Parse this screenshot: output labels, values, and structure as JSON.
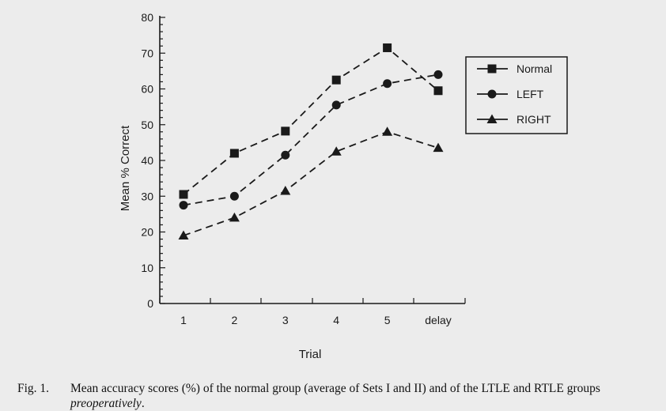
{
  "chart_data": {
    "type": "line",
    "categories": [
      "1",
      "2",
      "3",
      "4",
      "5",
      "delay"
    ],
    "series": [
      {
        "name": "Normal",
        "marker": "square",
        "values": [
          30.5,
          42,
          48.2,
          62.5,
          71.5,
          59.5
        ]
      },
      {
        "name": "LEFT",
        "marker": "circle",
        "values": [
          27.5,
          30,
          41.5,
          55.5,
          61.5,
          64
        ]
      },
      {
        "name": "RIGHT",
        "marker": "triangle",
        "values": [
          19,
          24,
          31.5,
          42.5,
          48,
          43.5
        ]
      }
    ],
    "xlabel": "Trial",
    "ylabel": "Mean % Correct",
    "ylim": [
      0,
      80
    ],
    "yticks": [
      0,
      10,
      20,
      30,
      40,
      50,
      60,
      70,
      80
    ],
    "legend_position": "top-right",
    "line_style": "dashed",
    "grid": false,
    "color": "#1a1a1a"
  },
  "caption": {
    "number": "Fig. 1.",
    "text_before": "Mean accuracy scores (%) of the normal group (average of Sets I and II) and of the LTLE and RTLE groups ",
    "text_italic": "preoperatively",
    "text_after": "."
  }
}
